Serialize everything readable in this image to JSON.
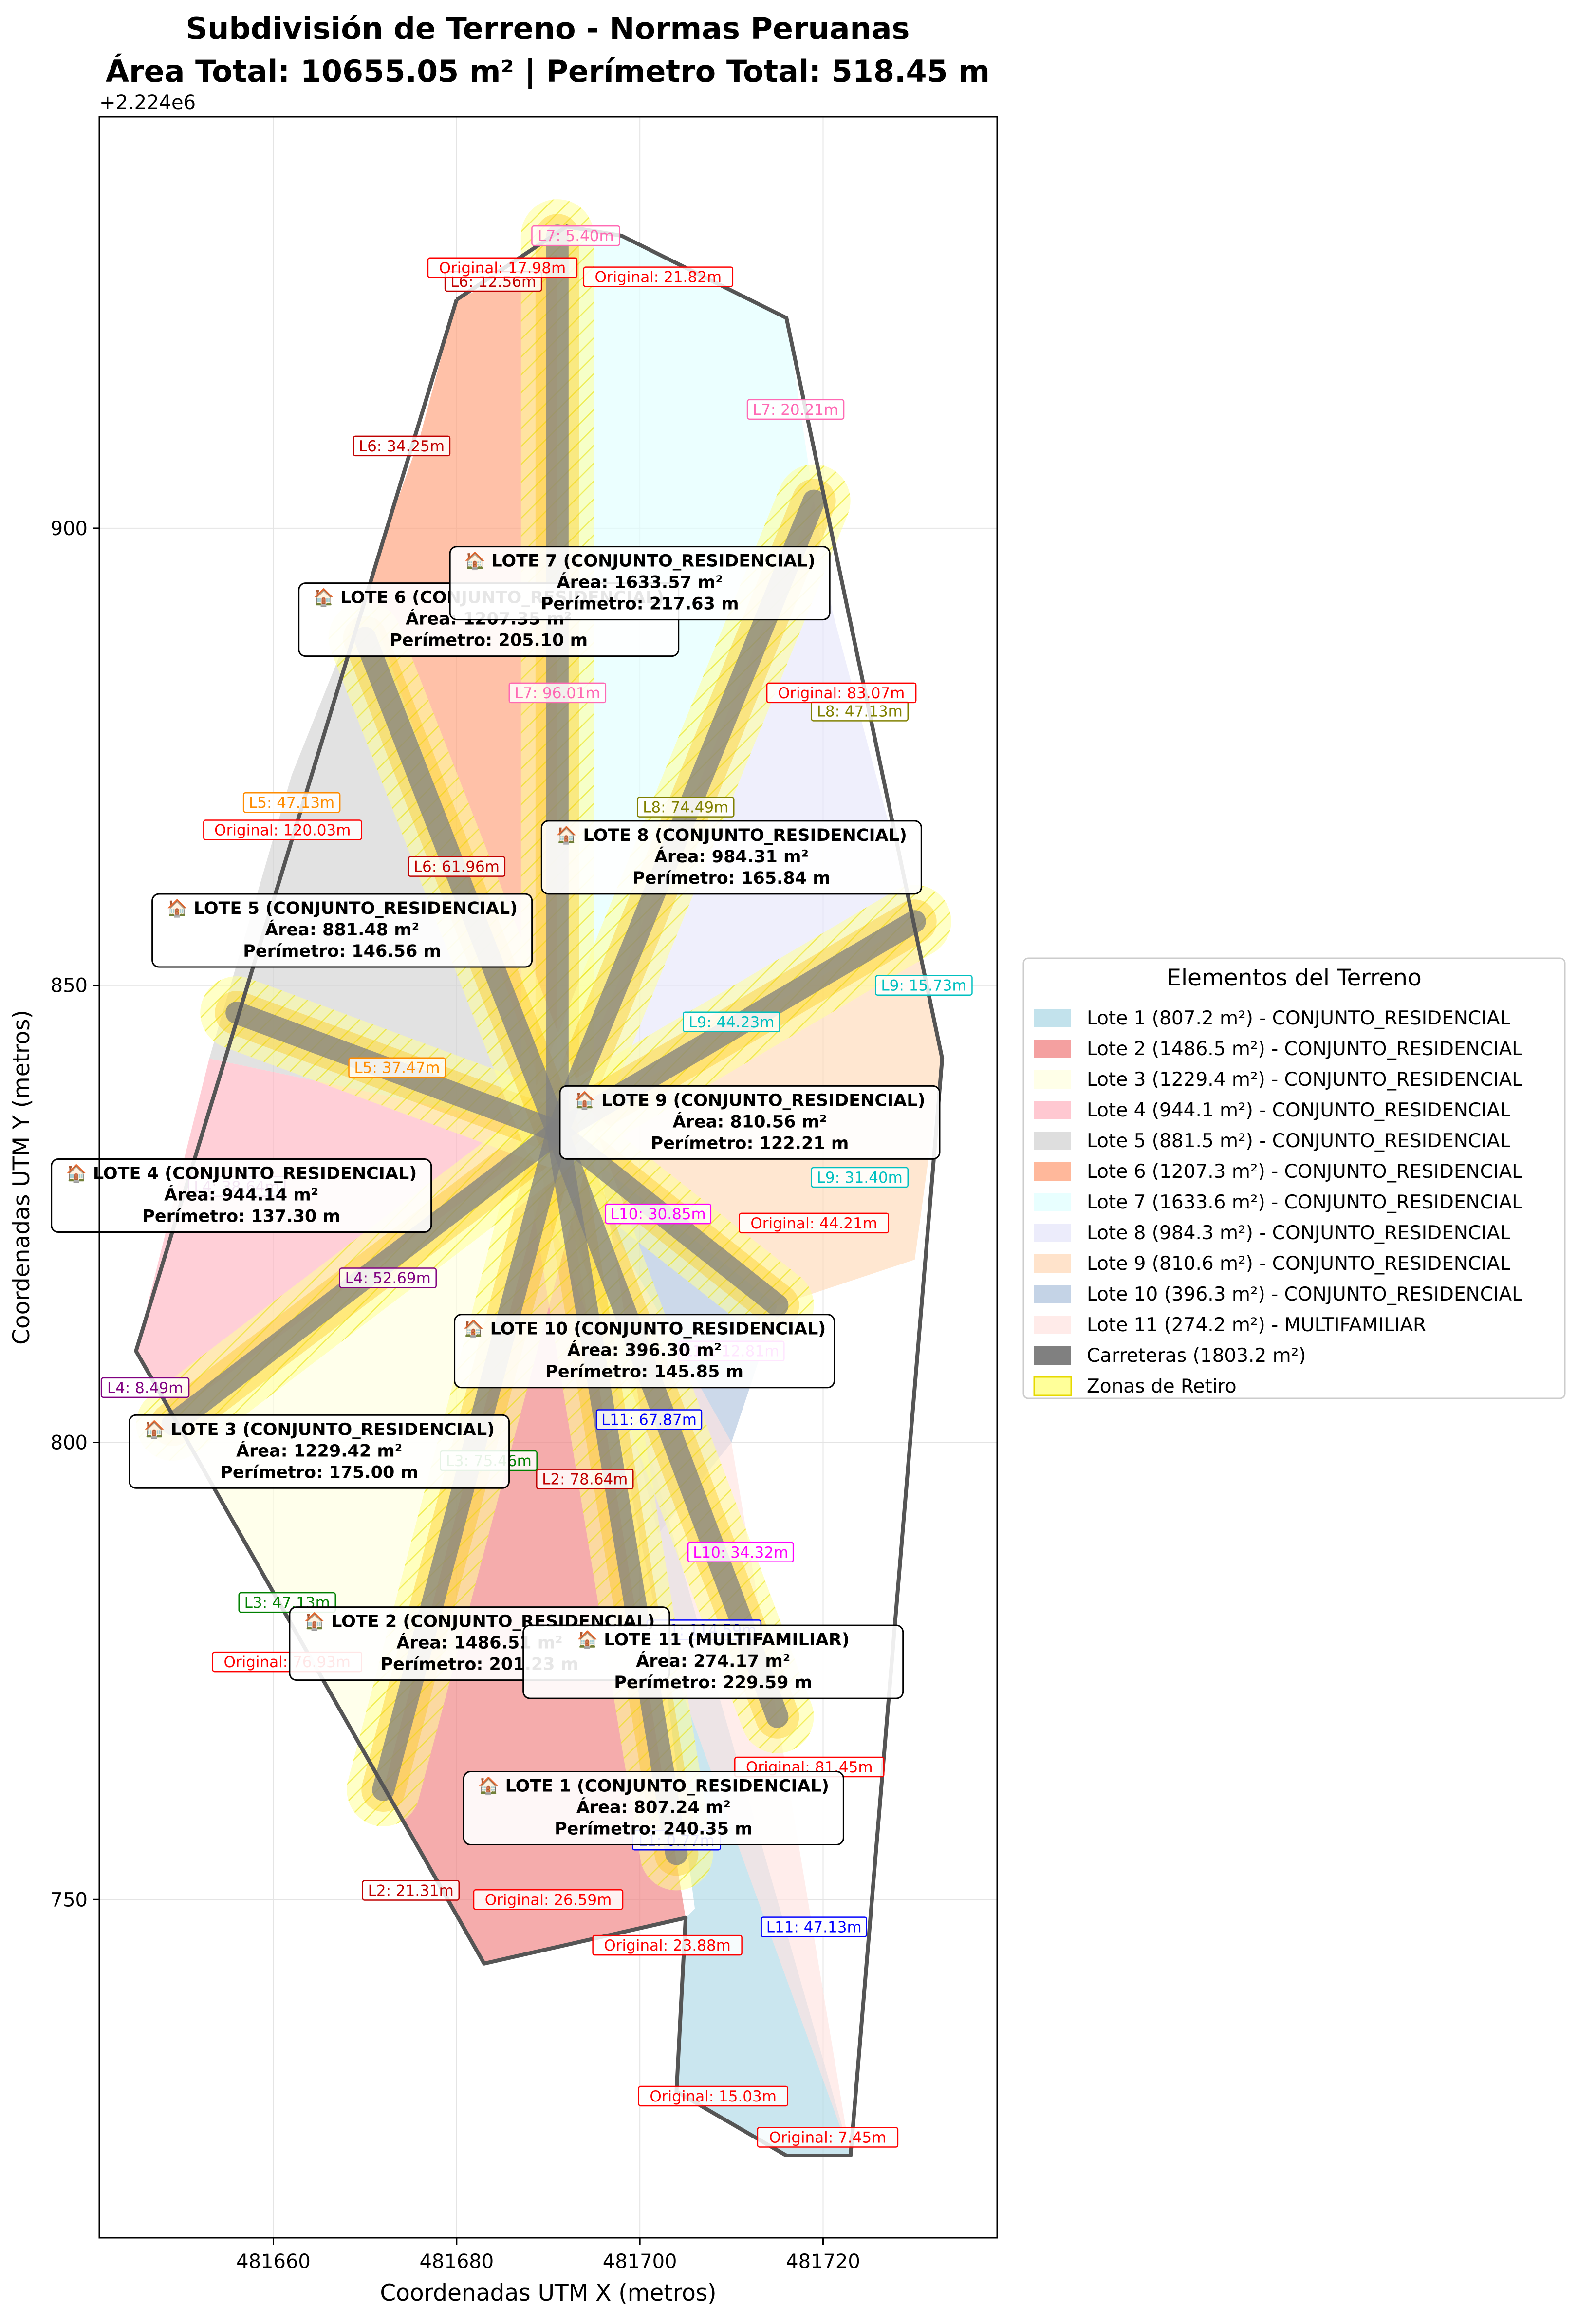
{
  "chart_data": {
    "type": "polygon-map",
    "title": "Subdivisión de Terreno - Normas Peruanas",
    "subtitle": "Área Total: 10655.05 m² | Perímetro Total: 518.45 m",
    "xlabel": "Coordenadas UTM X (metros)",
    "ylabel": "Coordenadas UTM Y (metros)",
    "y_offset_label": "+2.224e6",
    "xlim": [
      481641,
      481739
    ],
    "ylim": [
      713,
      945
    ],
    "xticks": [
      481660,
      481680,
      481700,
      481720
    ],
    "yticks": [
      750,
      800,
      850,
      900
    ],
    "grid": true,
    "center": [
      481691,
      834
    ],
    "boundary": [
      [
        481680,
        925
      ],
      [
        481692,
        933
      ],
      [
        481698,
        932
      ],
      [
        481716,
        923
      ],
      [
        481733,
        842
      ],
      [
        481723,
        722
      ],
      [
        481716,
        722
      ],
      [
        481704,
        729
      ],
      [
        481705,
        748
      ],
      [
        481683,
        743
      ],
      [
        481649,
        803
      ],
      [
        481645,
        810
      ],
      [
        481680,
        925
      ]
    ],
    "lots": [
      {
        "id": "Lote 1",
        "area": 807.24,
        "perimetro": 240.35,
        "uso": "CONJUNTO_RESIDENCIAL",
        "legend": "Lote 1 (807.2 m²) - CONJUNTO_RESIDENCIAL",
        "color": "#add8e6",
        "label": [
          "🏠 LOTE 1 (CONJUNTO_RESIDENCIAL)",
          "Área: 807.24 m²",
          "Perímetro: 240.35 m"
        ],
        "label_at": [
          481701.5,
          760
        ],
        "polygon": [
          [
            481691,
            834
          ],
          [
            481702,
            780
          ],
          [
            481706,
            749
          ],
          [
            481705,
            748
          ],
          [
            481704,
            729
          ],
          [
            481716,
            722
          ],
          [
            481723,
            722
          ]
        ]
      },
      {
        "id": "Lote 2",
        "area": 1486.51,
        "perimetro": 201.23,
        "uso": "CONJUNTO_RESIDENCIAL",
        "legend": "Lote 2 (1486.5 m²) - CONJUNTO_RESIDENCIAL",
        "color": "#f08080",
        "label": [
          "🏠 LOTE 2 (CONJUNTO_RESIDENCIAL)",
          "Área: 1486.51 m²",
          "Perímetro: 201.23 m"
        ],
        "label_at": [
          481682.5,
          778
        ],
        "polygon": [
          [
            481691,
            834
          ],
          [
            481705,
            748
          ],
          [
            481683,
            743
          ],
          [
            481672,
            762
          ]
        ]
      },
      {
        "id": "Lote 3",
        "area": 1229.42,
        "perimetro": 175.0,
        "uso": "CONJUNTO_RESIDENCIAL",
        "legend": "Lote 3 (1229.4 m²) - CONJUNTO_RESIDENCIAL",
        "color": "#ffffe0",
        "label": [
          "🏠 LOTE 3 (CONJUNTO_RESIDENCIAL)",
          "Área: 1229.42 m²",
          "Perímetro: 175.00 m"
        ],
        "label_at": [
          481665,
          799
        ],
        "polygon": [
          [
            481691,
            834
          ],
          [
            481672,
            762
          ],
          [
            481649,
            803
          ]
        ]
      },
      {
        "id": "Lote 4",
        "area": 944.14,
        "perimetro": 137.3,
        "uso": "CONJUNTO_RESIDENCIAL",
        "legend": "Lote 4 (944.1 m²) - CONJUNTO_RESIDENCIAL",
        "color": "#ffb6c1",
        "label": [
          "🏠 LOTE 4 (CONJUNTO_RESIDENCIAL)",
          "Área: 944.14 m²",
          "Perímetro: 137.30 m"
        ],
        "label_at": [
          481656.5,
          827
        ],
        "polygon": [
          [
            481691,
            834
          ],
          [
            481649,
            803
          ],
          [
            481645,
            810
          ],
          [
            481653,
            842
          ]
        ]
      },
      {
        "id": "Lote 5",
        "area": 881.48,
        "perimetro": 146.56,
        "uso": "CONJUNTO_RESIDENCIAL",
        "legend": "Lote 5 (881.5 m²) - CONJUNTO_RESIDENCIAL",
        "color": "#d3d3d3",
        "label": [
          "🏠 LOTE 5 (CONJUNTO_RESIDENCIAL)",
          "Área: 881.48 m²",
          "Perímetro: 146.56 m"
        ],
        "label_at": [
          481667.5,
          856
        ],
        "polygon": [
          [
            481691,
            834
          ],
          [
            481653,
            842
          ],
          [
            481662,
            873
          ],
          [
            481670,
            893
          ]
        ]
      },
      {
        "id": "Lote 6",
        "area": 1207.35,
        "perimetro": 205.1,
        "uso": "CONJUNTO_RESIDENCIAL",
        "legend": "Lote 6 (1207.3 m²) - CONJUNTO_RESIDENCIAL",
        "color": "#ffa07a",
        "label": [
          "🏠 LOTE 6 (CONJUNTO_RESIDENCIAL)",
          "Área: 1207.35 m²",
          "Perímetro: 205.10 m"
        ],
        "label_at": [
          481683.5,
          890
        ],
        "polygon": [
          [
            481691,
            834
          ],
          [
            481670,
            893
          ],
          [
            481676,
            910
          ],
          [
            481680,
            925
          ],
          [
            481691,
            930
          ]
        ]
      },
      {
        "id": "Lote 7",
        "area": 1633.57,
        "perimetro": 217.63,
        "uso": "CONJUNTO_RESIDENCIAL",
        "legend": "Lote 7 (1633.6 m²) - CONJUNTO_RESIDENCIAL",
        "color": "#e0ffff",
        "label": [
          "🏠 LOTE 7 (CONJUNTO_RESIDENCIAL)",
          "Área: 1633.57 m²",
          "Perímetro: 217.63 m"
        ],
        "label_at": [
          481700,
          894
        ],
        "polygon": [
          [
            481691,
            834
          ],
          [
            481691,
            930
          ],
          [
            481692,
            933
          ],
          [
            481698,
            932
          ],
          [
            481716,
            923
          ],
          [
            481719,
            903
          ]
        ]
      },
      {
        "id": "Lote 8",
        "area": 984.31,
        "perimetro": 165.84,
        "uso": "CONJUNTO_RESIDENCIAL",
        "legend": "Lote 8 (984.3 m²) - CONJUNTO_RESIDENCIAL",
        "color": "#e6e6fa",
        "label": [
          "🏠 LOTE 8 (CONJUNTO_RESIDENCIAL)",
          "Área: 984.31 m²",
          "Perímetro: 165.84 m"
        ],
        "label_at": [
          481710,
          864
        ],
        "polygon": [
          [
            481691,
            834
          ],
          [
            481719,
            903
          ],
          [
            481721,
            891
          ],
          [
            481730,
            857
          ]
        ]
      },
      {
        "id": "Lote 9",
        "area": 810.56,
        "perimetro": 122.21,
        "uso": "CONJUNTO_RESIDENCIAL",
        "legend": "Lote 9 (810.6 m²) - CONJUNTO_RESIDENCIAL",
        "color": "#ffdab9",
        "label": [
          "🏠 LOTE 9 (CONJUNTO_RESIDENCIAL)",
          "Área: 810.56 m²",
          "Perímetro: 122.21 m"
        ],
        "label_at": [
          481712,
          835
        ],
        "polygon": [
          [
            481691,
            834
          ],
          [
            481730,
            857
          ],
          [
            481733,
            842
          ],
          [
            481730,
            820
          ],
          [
            481715,
            815
          ]
        ]
      },
      {
        "id": "Lote 10",
        "area": 396.3,
        "perimetro": 145.85,
        "uso": "CONJUNTO_RESIDENCIAL",
        "legend": "Lote 10 (396.3 m²) - CONJUNTO_RESIDENCIAL",
        "color": "#b0c4de",
        "label": [
          "🏠 LOTE 10 (CONJUNTO_RESIDENCIAL)",
          "Área: 396.30 m²",
          "Perímetro: 145.85 m"
        ],
        "label_at": [
          481700.5,
          810
        ],
        "polygon": [
          [
            481691,
            834
          ],
          [
            481715,
            815
          ],
          [
            481710,
            800
          ],
          [
            481702,
            790
          ]
        ]
      },
      {
        "id": "Lote 11",
        "area": 274.17,
        "perimetro": 229.59,
        "uso": "MULTIFAMILIAR",
        "legend": "Lote 11 (274.2 m²) - MULTIFAMILIAR",
        "color": "#ffe4e1",
        "label": [
          "🏠 LOTE 11 (MULTIFAMILIAR)",
          "Área: 274.17 m²",
          "Perímetro: 229.59 m"
        ],
        "label_at": [
          481708,
          776
        ],
        "polygon": [
          [
            481691,
            834
          ],
          [
            481710,
            800
          ],
          [
            481715,
            770
          ],
          [
            481723,
            722
          ],
          [
            481702,
            780
          ]
        ]
      }
    ],
    "roads_legend": "Carreteras (1803.2 m²)",
    "roads_color": "#808080",
    "retreat_legend": "Zonas de Retiro",
    "retreat_color": "#ffff99",
    "roads": [
      {
        "from": [
          481691,
          834
        ],
        "to": [
          481691,
          932
        ]
      },
      {
        "from": [
          481691,
          834
        ],
        "to": [
          481719,
          903
        ]
      },
      {
        "from": [
          481691,
          834
        ],
        "to": [
          481730,
          857
        ]
      },
      {
        "from": [
          481691,
          834
        ],
        "to": [
          481715,
          815
        ]
      },
      {
        "from": [
          481691,
          834
        ],
        "to": [
          481715,
          770
        ]
      },
      {
        "from": [
          481691,
          834
        ],
        "to": [
          481704,
          755
        ]
      },
      {
        "from": [
          481691,
          834
        ],
        "to": [
          481672,
          762
        ]
      },
      {
        "from": [
          481691,
          834
        ],
        "to": [
          481649,
          802
        ]
      },
      {
        "from": [
          481691,
          834
        ],
        "to": [
          481656,
          847
        ]
      },
      {
        "from": [
          481691,
          834
        ],
        "to": [
          481670,
          888
        ]
      }
    ],
    "dimension_labels": [
      {
        "text": "L1: 0.77m",
        "at": [
          481704,
          756.5
        ],
        "color": "#0000ff"
      },
      {
        "text": "L2: 21.31m",
        "at": [
          481675,
          751
        ],
        "color": "#c00000"
      },
      {
        "text": "L2: 78.64m",
        "at": [
          481694,
          796
        ],
        "color": "#c00000"
      },
      {
        "text": "L3: 47.13m",
        "at": [
          481661.5,
          782.5
        ],
        "color": "#008000"
      },
      {
        "text": "L3: 75.46m",
        "at": [
          481683.5,
          798
        ],
        "color": "#008000"
      },
      {
        "text": "L4: 8.49m",
        "at": [
          481646,
          806
        ],
        "color": "#800080"
      },
      {
        "text": "L4: 52.69m",
        "at": [
          481672.5,
          818
        ],
        "color": "#800080"
      },
      {
        "text": "L4: 38.64m",
        "at": [
          481656,
          828
        ],
        "color": "#800080"
      },
      {
        "text": "L5: 37.47m",
        "at": [
          481673.5,
          841
        ],
        "color": "#ff8c00"
      },
      {
        "text": "L5: 47.13m",
        "at": [
          481662,
          870
        ],
        "color": "#ff8c00"
      },
      {
        "text": "L6: 61.96m",
        "at": [
          481680,
          863
        ],
        "color": "#c00000"
      },
      {
        "text": "L6: 34.25m",
        "at": [
          481674,
          909
        ],
        "color": "#c00000"
      },
      {
        "text": "L6: 12.56m",
        "at": [
          481684,
          927
        ],
        "color": "#c00000"
      },
      {
        "text": "L7: 5.40m",
        "at": [
          481693,
          932
        ],
        "color": "#ff69b4"
      },
      {
        "text": "L7: 96.01m",
        "at": [
          481691,
          882
        ],
        "color": "#ff69b4"
      },
      {
        "text": "L7: 20.21m",
        "at": [
          481717,
          913
        ],
        "color": "#ff69b4"
      },
      {
        "text": "L8: 74.49m",
        "at": [
          481705,
          869.5
        ],
        "color": "#808000"
      },
      {
        "text": "L8: 47.13m",
        "at": [
          481724,
          880
        ],
        "color": "#808000"
      },
      {
        "text": "L9: 44.23m",
        "at": [
          481710,
          846
        ],
        "color": "#00c0c0"
      },
      {
        "text": "L9: 15.73m",
        "at": [
          481731,
          850
        ],
        "color": "#00c0c0"
      },
      {
        "text": "L9: 31.40m",
        "at": [
          481724,
          829
        ],
        "color": "#00c0c0"
      },
      {
        "text": "L10: 30.85m",
        "at": [
          481702,
          825
        ],
        "color": "#ff00ff"
      },
      {
        "text": "L10: 12.81m",
        "at": [
          481710,
          810
        ],
        "color": "#ff00ff"
      },
      {
        "text": "L10: 34.32m",
        "at": [
          481711,
          788
        ],
        "color": "#ff00ff"
      },
      {
        "text": "L11: 67.87m",
        "at": [
          481701,
          802.5
        ],
        "color": "#0000ff"
      },
      {
        "text": "L11: 114.59m",
        "at": [
          481707,
          779.5
        ],
        "color": "#0000ff"
      },
      {
        "text": "L11: 47.13m",
        "at": [
          481719,
          747
        ],
        "color": "#0000ff"
      },
      {
        "text": "Original: 17.98m",
        "at": [
          481685,
          928.5
        ],
        "color": "#ff0000"
      },
      {
        "text": "Original: 21.82m",
        "at": [
          481702,
          927.5
        ],
        "color": "#ff0000"
      },
      {
        "text": "Original: 83.07m",
        "at": [
          481722,
          882
        ],
        "color": "#ff0000"
      },
      {
        "text": "Original: 120.03m",
        "at": [
          481661,
          867
        ],
        "color": "#ff0000"
      },
      {
        "text": "Original: 44.21m",
        "at": [
          481719,
          824
        ],
        "color": "#ff0000"
      },
      {
        "text": "Original: 76.93m",
        "at": [
          481661.5,
          776
        ],
        "color": "#ff0000"
      },
      {
        "text": "Original: 81.45m",
        "at": [
          481718.5,
          764.5
        ],
        "color": "#ff0000"
      },
      {
        "text": "Original: 26.59m",
        "at": [
          481690,
          750
        ],
        "color": "#ff0000"
      },
      {
        "text": "Original: 23.88m",
        "at": [
          481703,
          745
        ],
        "color": "#ff0000"
      },
      {
        "text": "Original: 15.03m",
        "at": [
          481708,
          728.5
        ],
        "color": "#ff0000"
      },
      {
        "text": "Original: 7.45m",
        "at": [
          481720.5,
          724
        ],
        "color": "#ff0000"
      }
    ]
  }
}
